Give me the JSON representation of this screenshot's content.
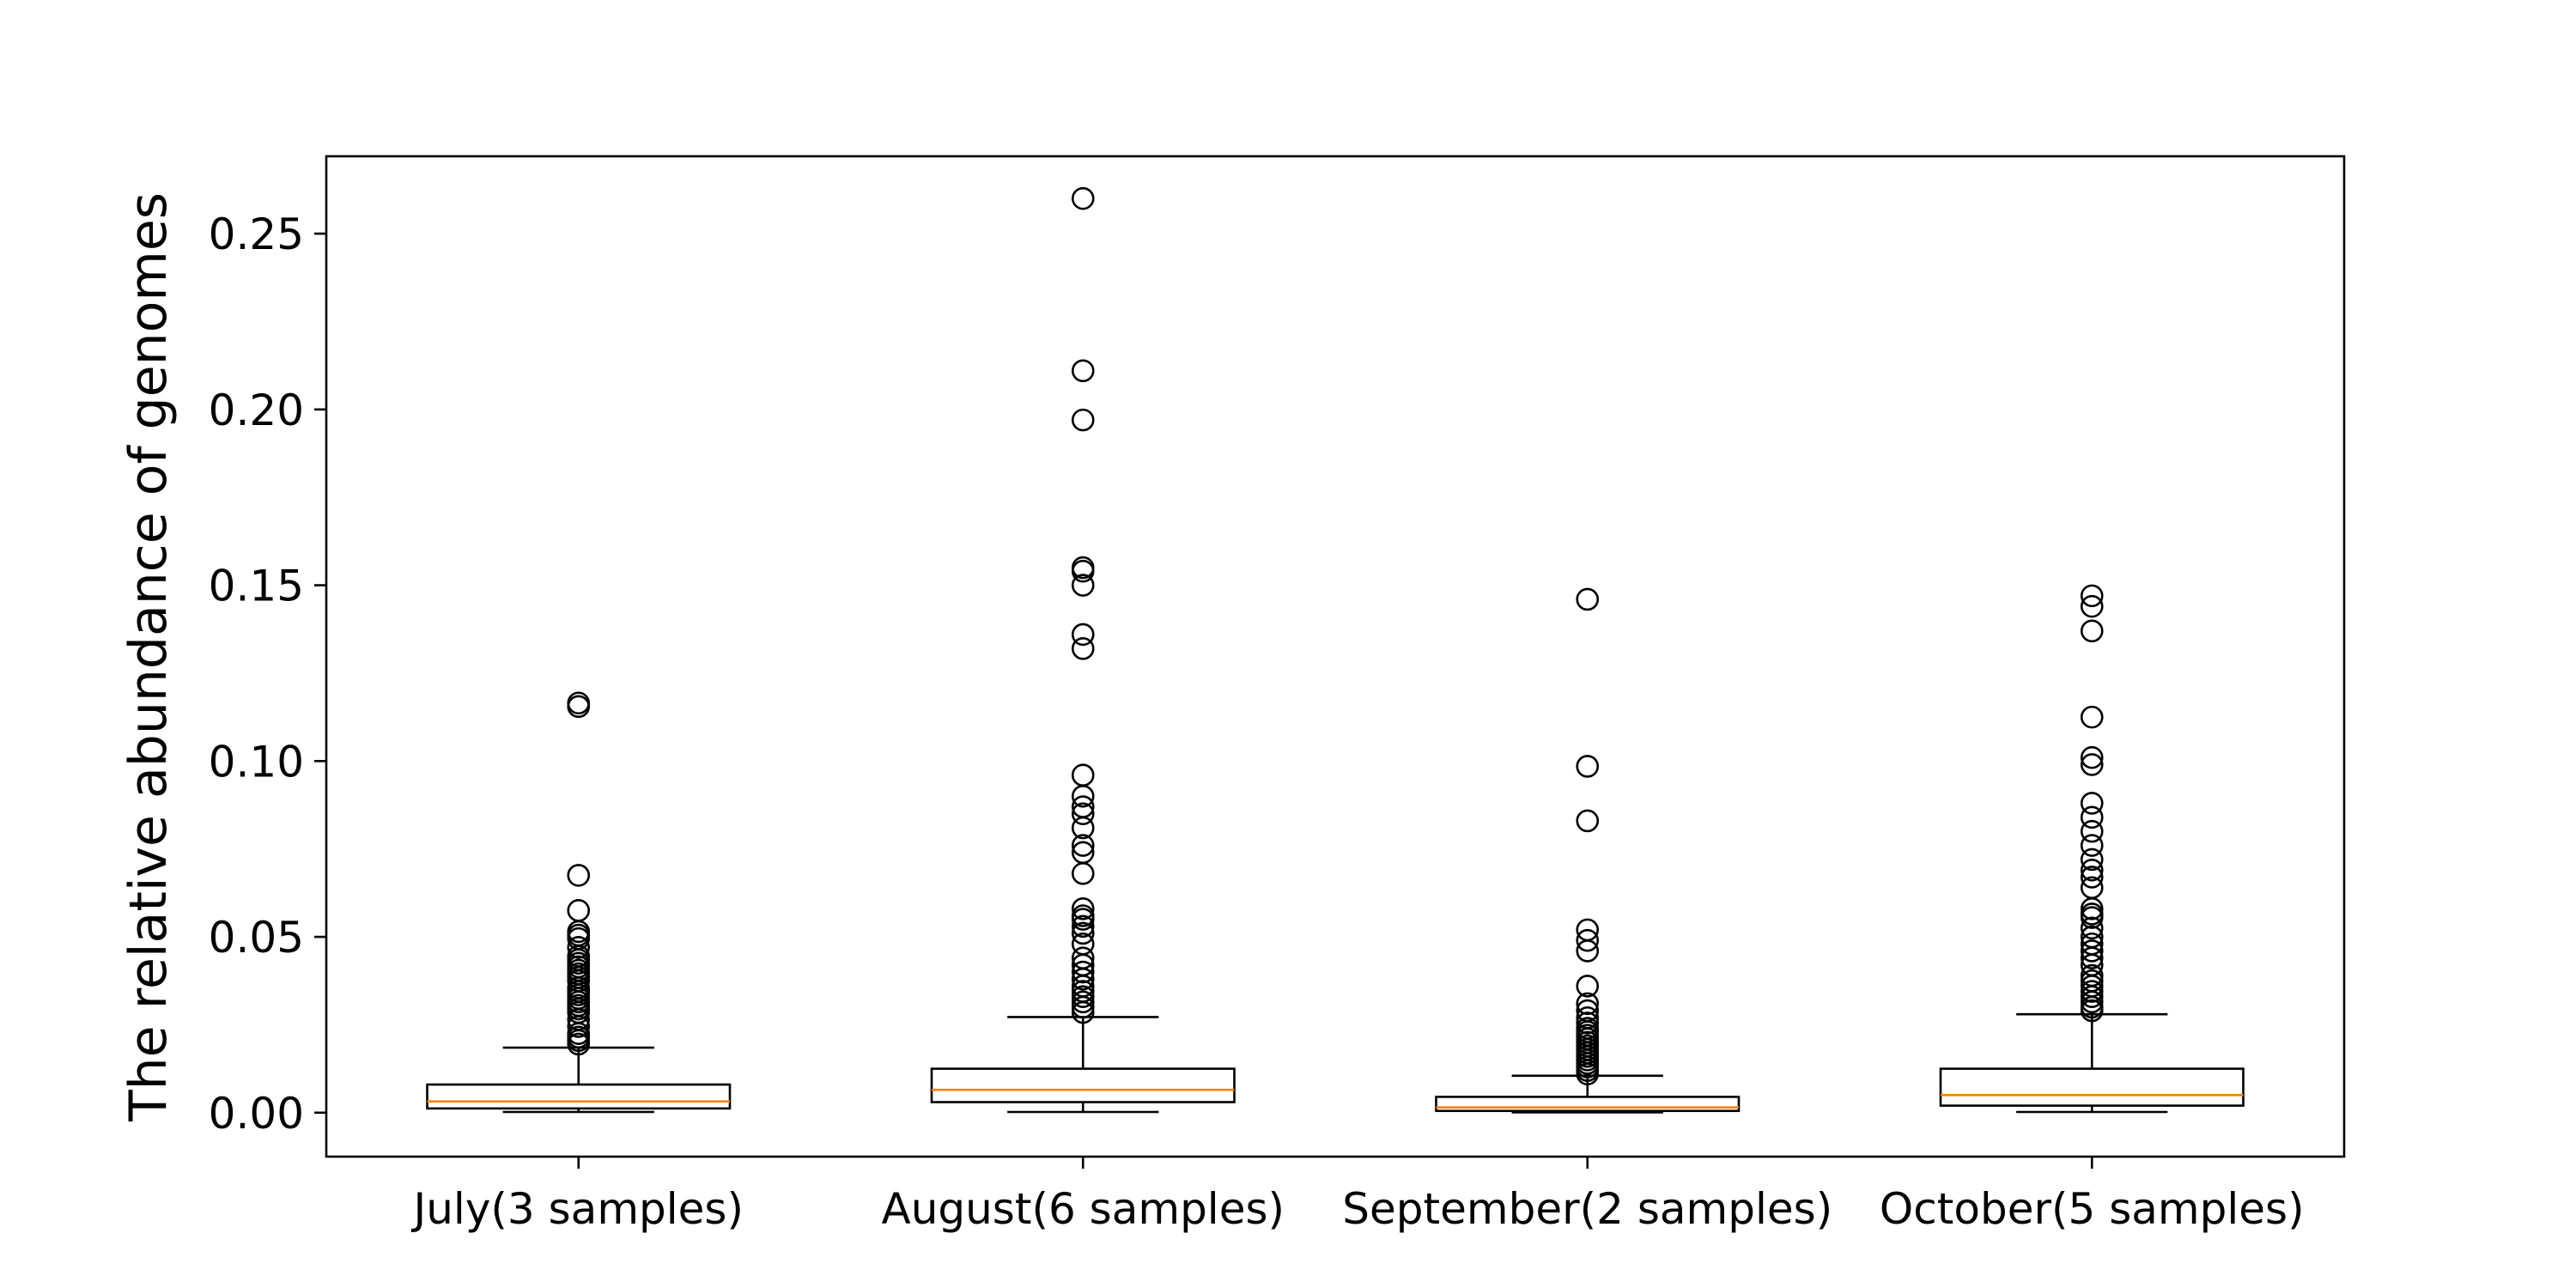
{
  "chart_data": {
    "type": "boxplot",
    "title": "",
    "xlabel": "",
    "ylabel": "The relative abundance of genomes",
    "ylim": [
      -0.0125,
      0.272
    ],
    "yticks": [
      0.0,
      0.05,
      0.1,
      0.15,
      0.2,
      0.25
    ],
    "ytick_labels": [
      "0.00",
      "0.05",
      "0.10",
      "0.15",
      "0.20",
      "0.25"
    ],
    "grid": false,
    "median_color": "#ff7f0e",
    "box_color": "#000000",
    "categories": [
      "July(3 samples)",
      "August(6 samples)",
      "September(2 samples)",
      "October(5 samples)"
    ],
    "boxes": [
      {
        "whisker_low": 0.0002,
        "q1": 0.0012,
        "median": 0.0032,
        "q3": 0.008,
        "whisker_high": 0.0185,
        "outliers": [
          0.0195,
          0.0205,
          0.0215,
          0.0225,
          0.0245,
          0.0265,
          0.0285,
          0.0295,
          0.0305,
          0.0315,
          0.0325,
          0.0335,
          0.0345,
          0.0355,
          0.0375,
          0.0385,
          0.0395,
          0.0405,
          0.0415,
          0.0425,
          0.0435,
          0.0445,
          0.047,
          0.0495,
          0.0505,
          0.0515,
          0.0575,
          0.0675,
          0.1155,
          0.1165
        ]
      },
      {
        "whisker_low": 0.0002,
        "q1": 0.003,
        "median": 0.0065,
        "q3": 0.0125,
        "whisker_high": 0.0272,
        "outliers": [
          0.0285,
          0.03,
          0.0315,
          0.033,
          0.0345,
          0.036,
          0.038,
          0.04,
          0.042,
          0.044,
          0.048,
          0.051,
          0.053,
          0.055,
          0.056,
          0.058,
          0.068,
          0.074,
          0.076,
          0.081,
          0.085,
          0.087,
          0.09,
          0.096,
          0.132,
          0.136,
          0.15,
          0.154,
          0.155,
          0.197,
          0.211,
          0.26
        ]
      },
      {
        "whisker_low": 0.0001,
        "q1": 0.0005,
        "median": 0.0015,
        "q3": 0.0045,
        "whisker_high": 0.0105,
        "outliers": [
          0.011,
          0.012,
          0.013,
          0.014,
          0.015,
          0.016,
          0.017,
          0.018,
          0.019,
          0.02,
          0.021,
          0.022,
          0.023,
          0.024,
          0.0255,
          0.027,
          0.029,
          0.031,
          0.036,
          0.046,
          0.049,
          0.052,
          0.083,
          0.0985,
          0.146
        ]
      },
      {
        "whisker_low": 0.0002,
        "q1": 0.002,
        "median": 0.005,
        "q3": 0.0125,
        "whisker_high": 0.028,
        "outliers": [
          0.029,
          0.03,
          0.0315,
          0.033,
          0.0345,
          0.036,
          0.0375,
          0.039,
          0.042,
          0.044,
          0.046,
          0.048,
          0.05,
          0.0525,
          0.0555,
          0.0565,
          0.058,
          0.064,
          0.067,
          0.069,
          0.072,
          0.076,
          0.08,
          0.084,
          0.088,
          0.099,
          0.101,
          0.1125,
          0.137,
          0.144,
          0.147
        ]
      }
    ]
  }
}
